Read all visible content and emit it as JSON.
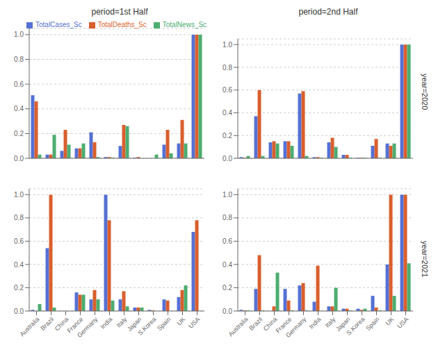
{
  "chart_data": [
    {
      "type": "bar",
      "title": "period=1st Half",
      "categories": [
        "Australia",
        "Brazil",
        "China",
        "France",
        "Germany",
        "India",
        "Italy",
        "Japan",
        "S.Korea",
        "Spain",
        "UK",
        "USA"
      ],
      "series": [
        {
          "name": "TotalCases_Sc",
          "color": "#5570d4",
          "values": [
            0.51,
            0.03,
            0.06,
            0.08,
            0.21,
            0.01,
            0.1,
            0.005,
            0.0,
            0.11,
            0.12,
            1.0
          ]
        },
        {
          "name": "TotalDeaths_Sc",
          "color": "#d95f2e",
          "values": [
            0.46,
            0.03,
            0.23,
            0.08,
            0.13,
            0.01,
            0.27,
            0.01,
            0.0,
            0.23,
            0.31,
            1.0
          ]
        },
        {
          "name": "TotalNews_Sc",
          "color": "#4cad70",
          "values": [
            0.03,
            0.19,
            0.11,
            0.12,
            0.01,
            0.005,
            0.26,
            0.0,
            0.03,
            0.04,
            0.12,
            1.0
          ]
        }
      ],
      "ylim": [
        0,
        1.05
      ],
      "yticks": [
        {
          "value": 0,
          "label": "0.0"
        },
        0.2,
        0.4,
        0.6,
        0.8,
        {
          "value": 1.0,
          "label": "1.0"
        }
      ],
      "grid": true,
      "legend": "upper left",
      "tick_labels": "y"
    },
    {
      "type": "bar",
      "title": "period=2nd Half",
      "annotations": [
        "year=2020"
      ],
      "categories": [
        "Australia",
        "Brazil",
        "China",
        "France",
        "Germany",
        "India",
        "Italy",
        "Japan",
        "S.Korea",
        "Spain",
        "UK",
        "USA"
      ],
      "series": [
        {
          "name": "TotalCases_Sc",
          "color": "#5570d4",
          "values": [
            0.01,
            0.37,
            0.14,
            0.15,
            0.57,
            0.01,
            0.14,
            0.03,
            0.005,
            0.11,
            0.13,
            1.0
          ]
        },
        {
          "name": "TotalDeaths_Sc",
          "color": "#d95f2e",
          "values": [
            0.005,
            0.6,
            0.15,
            0.15,
            0.59,
            0.01,
            0.18,
            0.03,
            0.005,
            0.17,
            0.11,
            1.0
          ]
        },
        {
          "name": "TotalNews_Sc",
          "color": "#4cad70",
          "values": [
            0.02,
            0.02,
            0.13,
            0.11,
            0.02,
            0.005,
            0.1,
            0.005,
            0.005,
            0.005,
            0.13,
            1.0
          ]
        }
      ],
      "ylim": [
        0,
        1.05
      ],
      "yticks": [
        {
          "value": 0,
          "label": "0.0"
        },
        0.2,
        0.4,
        0.6,
        0.8,
        {
          "value": 1.0,
          "label": "1.0"
        }
      ],
      "grid": true,
      "tick_labels": "y"
    },
    {
      "type": "bar",
      "categories": [
        "Australia",
        "Brazil",
        "China",
        "France",
        "Germany",
        "India",
        "Italy",
        "Japan",
        "S.Korea",
        "Spain",
        "UK",
        "USA"
      ],
      "series": [
        {
          "name": "TotalCases_Sc",
          "color": "#5570d4",
          "values": [
            0.01,
            0.54,
            0.0,
            0.16,
            0.1,
            1.0,
            0.1,
            0.03,
            0.01,
            0.1,
            0.12,
            0.68
          ]
        },
        {
          "name": "TotalDeaths_Sc",
          "color": "#d95f2e",
          "values": [
            0.0,
            1.0,
            0.0,
            0.14,
            0.18,
            0.78,
            0.17,
            0.03,
            0.005,
            0.09,
            0.18,
            0.78
          ]
        },
        {
          "name": "TotalNews_Sc",
          "color": "#4cad70",
          "values": [
            0.06,
            0.03,
            0.0,
            0.14,
            0.1,
            0.09,
            0.04,
            0.03,
            0.0,
            0.0,
            0.22,
            0.0
          ]
        }
      ],
      "ylim": [
        0,
        1.05
      ],
      "yticks": [
        {
          "value": 0,
          "label": "0.0"
        },
        0.2,
        0.4,
        0.6,
        0.8,
        {
          "value": 1.0,
          "label": "1.0"
        }
      ],
      "grid": true
    },
    {
      "type": "bar",
      "annotations": [
        "year=2021"
      ],
      "categories": [
        "Australia",
        "Brazil",
        "China",
        "France",
        "Germany",
        "India",
        "Italy",
        "Japan",
        "S.Korea",
        "Spain",
        "UK",
        "USA"
      ],
      "series": [
        {
          "name": "TotalCases_Sc",
          "color": "#5570d4",
          "values": [
            0.01,
            0.19,
            0.0,
            0.19,
            0.22,
            0.08,
            0.04,
            0.02,
            0.02,
            0.13,
            0.4,
            1.0
          ]
        },
        {
          "name": "TotalDeaths_Sc",
          "color": "#d95f2e",
          "values": [
            0.005,
            0.48,
            0.04,
            0.09,
            0.24,
            0.39,
            0.04,
            0.02,
            0.01,
            0.03,
            1.0,
            1.0
          ]
        },
        {
          "name": "TotalNews_Sc",
          "color": "#4cad70",
          "values": [
            0.005,
            0.005,
            0.33,
            0.005,
            0.005,
            0.0,
            0.2,
            0.005,
            0.02,
            0.005,
            0.13,
            0.41
          ]
        }
      ],
      "ylim": [
        0,
        1.05
      ],
      "yticks": [
        {
          "value": 0,
          "label": "0.0"
        },
        0.2,
        0.4,
        0.6,
        0.8,
        {
          "value": 1.0,
          "label": "1.0"
        }
      ],
      "grid": true
    }
  ]
}
